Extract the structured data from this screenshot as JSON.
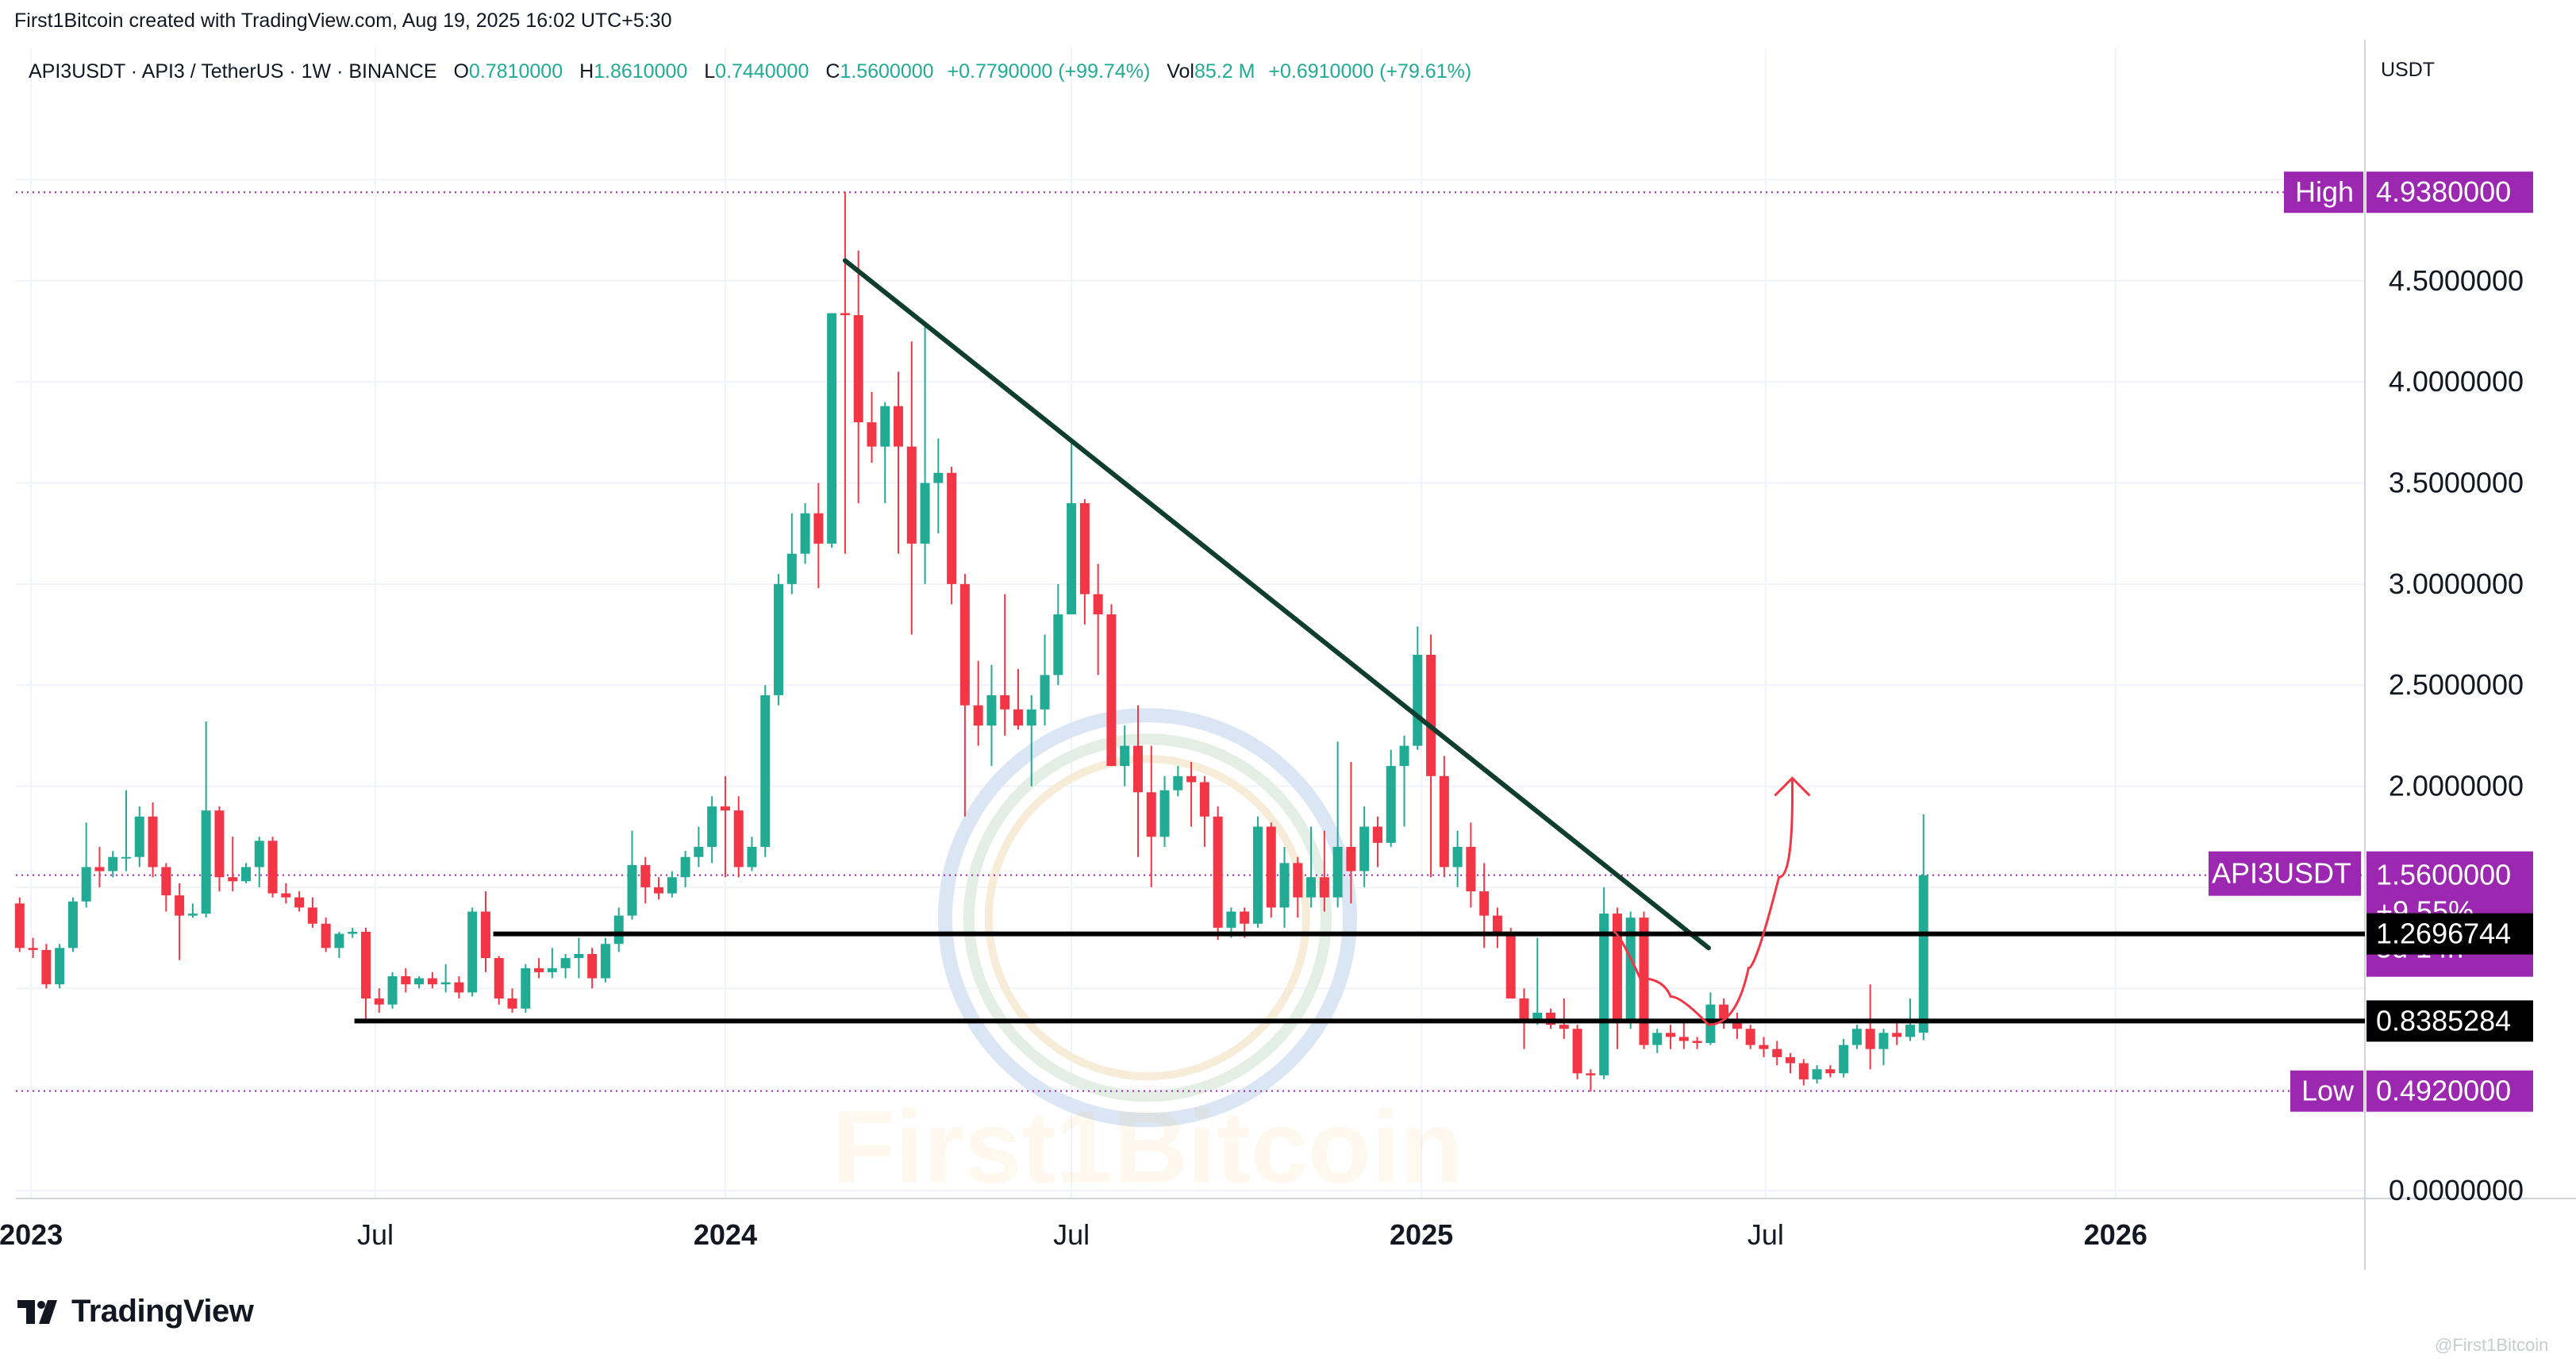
{
  "header": {
    "created_by": "First1Bitcoin created with TradingView.com, Aug 19, 2025 16:02 UTC+5:30",
    "symbol_line": "API3USDT · API3 / TetherUS · 1W · BINANCE",
    "open_label": "O",
    "open": "0.7810000",
    "high_label": "H",
    "high": "1.8610000",
    "low_label": "L",
    "low": "0.7440000",
    "close_label": "C",
    "close": "1.5600000",
    "change": "+0.7790000 (+99.74%)",
    "vol_label": "Vol",
    "vol": "85.2 M",
    "vol_change": "+0.6910000 (+79.61%)"
  },
  "price_axis": {
    "unit": "USDT"
  },
  "colors": {
    "up": "#22ab94",
    "down": "#f23645",
    "trendline": "#0f3d2e",
    "level": "#000000",
    "marker": "#9c27b0",
    "arrow": "#f23645",
    "watermark": "#f5a623"
  },
  "chart_data": {
    "type": "candlestick",
    "timeframe": "1W",
    "y_unit": "USDT",
    "ylim": [
      0,
      5.3
    ],
    "y_ticks": [
      "0.0000000",
      "2.0000000",
      "2.5000000",
      "3.0000000",
      "3.5000000",
      "4.0000000",
      "4.5000000"
    ],
    "x_ticks": [
      {
        "label": "2023",
        "x": "2023-01-01",
        "bold": true
      },
      {
        "label": "Jul",
        "x": "2023-07-01",
        "bold": false
      },
      {
        "label": "2024",
        "x": "2024-01-01",
        "bold": true
      },
      {
        "label": "Jul",
        "x": "2024-07-01",
        "bold": false
      },
      {
        "label": "2025",
        "x": "2025-01-01",
        "bold": true
      },
      {
        "label": "Jul",
        "x": "2025-07-01",
        "bold": false
      },
      {
        "label": "2026",
        "x": "2026-01-01",
        "bold": true
      }
    ],
    "x_range": [
      "2022-12-24",
      "2026-05-10"
    ],
    "candles": [
      [
        "2022-12-26",
        1.42,
        1.45,
        1.18,
        1.2
      ],
      [
        "2023-01-02",
        1.2,
        1.25,
        1.15,
        1.19
      ],
      [
        "2023-01-09",
        1.19,
        1.22,
        1.0,
        1.02
      ],
      [
        "2023-01-16",
        1.02,
        1.22,
        1.0,
        1.2
      ],
      [
        "2023-01-23",
        1.2,
        1.45,
        1.18,
        1.43
      ],
      [
        "2023-01-30",
        1.43,
        1.82,
        1.4,
        1.6
      ],
      [
        "2023-02-06",
        1.6,
        1.7,
        1.5,
        1.58
      ],
      [
        "2023-02-13",
        1.58,
        1.68,
        1.55,
        1.65
      ],
      [
        "2023-02-20",
        1.65,
        1.98,
        1.58,
        1.65
      ],
      [
        "2023-02-27",
        1.65,
        1.9,
        1.6,
        1.85
      ],
      [
        "2023-03-06",
        1.85,
        1.92,
        1.55,
        1.6
      ],
      [
        "2023-03-13",
        1.6,
        1.62,
        1.38,
        1.46
      ],
      [
        "2023-03-20",
        1.46,
        1.52,
        1.14,
        1.36
      ],
      [
        "2023-03-27",
        1.36,
        1.42,
        1.35,
        1.37
      ],
      [
        "2023-04-03",
        1.37,
        2.32,
        1.35,
        1.88
      ],
      [
        "2023-04-10",
        1.88,
        1.9,
        1.48,
        1.55
      ],
      [
        "2023-04-17",
        1.55,
        1.75,
        1.48,
        1.53
      ],
      [
        "2023-04-24",
        1.53,
        1.62,
        1.52,
        1.6
      ],
      [
        "2023-05-01",
        1.6,
        1.75,
        1.5,
        1.73
      ],
      [
        "2023-05-08",
        1.73,
        1.75,
        1.45,
        1.47
      ],
      [
        "2023-05-15",
        1.47,
        1.52,
        1.42,
        1.45
      ],
      [
        "2023-05-22",
        1.45,
        1.48,
        1.38,
        1.4
      ],
      [
        "2023-05-29",
        1.4,
        1.45,
        1.3,
        1.32
      ],
      [
        "2023-06-05",
        1.32,
        1.35,
        1.18,
        1.2
      ],
      [
        "2023-06-12",
        1.2,
        1.28,
        1.15,
        1.27
      ],
      [
        "2023-06-19",
        1.27,
        1.3,
        1.25,
        1.28
      ],
      [
        "2023-06-26",
        1.28,
        1.3,
        0.85,
        0.95
      ],
      [
        "2023-07-03",
        0.95,
        1.0,
        0.88,
        0.92
      ],
      [
        "2023-07-10",
        0.92,
        1.08,
        0.9,
        1.06
      ],
      [
        "2023-07-17",
        1.06,
        1.1,
        0.98,
        1.02
      ],
      [
        "2023-07-24",
        1.02,
        1.06,
        1.0,
        1.05
      ],
      [
        "2023-07-31",
        1.05,
        1.08,
        1.0,
        1.02
      ],
      [
        "2023-08-07",
        1.02,
        1.12,
        0.98,
        1.03
      ],
      [
        "2023-08-14",
        1.03,
        1.06,
        0.95,
        0.98
      ],
      [
        "2023-08-21",
        0.98,
        1.4,
        0.96,
        1.38
      ],
      [
        "2023-08-28",
        1.38,
        1.48,
        1.08,
        1.15
      ],
      [
        "2023-09-04",
        1.15,
        1.16,
        0.92,
        0.95
      ],
      [
        "2023-09-11",
        0.95,
        1.0,
        0.88,
        0.9
      ],
      [
        "2023-09-18",
        0.9,
        1.12,
        0.88,
        1.1
      ],
      [
        "2023-09-25",
        1.1,
        1.15,
        1.05,
        1.08
      ],
      [
        "2023-10-02",
        1.08,
        1.2,
        1.05,
        1.1
      ],
      [
        "2023-10-09",
        1.1,
        1.17,
        1.05,
        1.15
      ],
      [
        "2023-10-16",
        1.15,
        1.25,
        1.05,
        1.17
      ],
      [
        "2023-10-23",
        1.17,
        1.2,
        1.0,
        1.05
      ],
      [
        "2023-10-30",
        1.05,
        1.25,
        1.03,
        1.22
      ],
      [
        "2023-11-06",
        1.22,
        1.4,
        1.18,
        1.36
      ],
      [
        "2023-11-13",
        1.36,
        1.78,
        1.34,
        1.61
      ],
      [
        "2023-11-20",
        1.61,
        1.65,
        1.42,
        1.5
      ],
      [
        "2023-11-27",
        1.5,
        1.55,
        1.44,
        1.47
      ],
      [
        "2023-12-04",
        1.47,
        1.58,
        1.45,
        1.55
      ],
      [
        "2023-12-11",
        1.55,
        1.68,
        1.5,
        1.65
      ],
      [
        "2023-12-18",
        1.65,
        1.8,
        1.6,
        1.7
      ],
      [
        "2023-12-25",
        1.7,
        1.95,
        1.62,
        1.9
      ],
      [
        "2024-01-01",
        1.9,
        2.05,
        1.55,
        1.88
      ],
      [
        "2024-01-08",
        1.88,
        1.95,
        1.55,
        1.6
      ],
      [
        "2024-01-15",
        1.6,
        1.75,
        1.58,
        1.7
      ],
      [
        "2024-01-22",
        1.7,
        2.5,
        1.65,
        2.45
      ],
      [
        "2024-01-29",
        2.45,
        3.05,
        2.4,
        3.0
      ],
      [
        "2024-02-05",
        3.0,
        3.35,
        2.95,
        3.15
      ],
      [
        "2024-02-12",
        3.15,
        3.4,
        3.1,
        3.35
      ],
      [
        "2024-02-19",
        3.35,
        3.5,
        2.98,
        3.2
      ],
      [
        "2024-02-26",
        3.2,
        4.34,
        3.18,
        4.34
      ],
      [
        "2024-03-04",
        4.34,
        4.94,
        3.15,
        4.33
      ],
      [
        "2024-03-11",
        4.33,
        4.65,
        3.4,
        3.8
      ],
      [
        "2024-03-18",
        3.8,
        3.95,
        3.6,
        3.68
      ],
      [
        "2024-03-25",
        3.68,
        3.9,
        3.4,
        3.88
      ],
      [
        "2024-04-01",
        3.88,
        4.05,
        3.15,
        3.68
      ],
      [
        "2024-04-08",
        3.68,
        4.2,
        2.75,
        3.2
      ],
      [
        "2024-04-15",
        3.2,
        4.3,
        3.0,
        3.5
      ],
      [
        "2024-04-22",
        3.5,
        3.72,
        3.25,
        3.55
      ],
      [
        "2024-04-29",
        3.55,
        3.58,
        2.9,
        3.0
      ],
      [
        "2024-05-06",
        3.0,
        3.05,
        1.85,
        2.4
      ],
      [
        "2024-05-13",
        2.4,
        2.62,
        2.2,
        2.3
      ],
      [
        "2024-05-20",
        2.3,
        2.6,
        2.1,
        2.45
      ],
      [
        "2024-05-27",
        2.45,
        2.95,
        2.25,
        2.38
      ],
      [
        "2024-06-03",
        2.38,
        2.58,
        2.28,
        2.3
      ],
      [
        "2024-06-10",
        2.3,
        2.45,
        2.0,
        2.38
      ],
      [
        "2024-06-17",
        2.38,
        2.75,
        2.3,
        2.55
      ],
      [
        "2024-06-24",
        2.55,
        3.0,
        2.5,
        2.85
      ],
      [
        "2024-07-01",
        2.85,
        3.7,
        2.85,
        3.4
      ],
      [
        "2024-07-08",
        3.4,
        3.42,
        2.8,
        2.95
      ],
      [
        "2024-07-15",
        2.95,
        3.1,
        2.55,
        2.85
      ],
      [
        "2024-07-22",
        2.85,
        2.9,
        2.1,
        2.1
      ],
      [
        "2024-07-29",
        2.1,
        2.3,
        2.0,
        2.2
      ],
      [
        "2024-08-05",
        2.2,
        2.4,
        1.65,
        1.97
      ],
      [
        "2024-08-12",
        1.97,
        2.2,
        1.5,
        1.75
      ],
      [
        "2024-08-19",
        1.75,
        2.05,
        1.7,
        1.98
      ],
      [
        "2024-08-26",
        1.98,
        2.1,
        1.95,
        2.05
      ],
      [
        "2024-09-02",
        2.05,
        2.12,
        1.8,
        2.02
      ],
      [
        "2024-09-09",
        2.02,
        2.05,
        1.7,
        1.85
      ],
      [
        "2024-09-16",
        1.85,
        1.9,
        1.24,
        1.3
      ],
      [
        "2024-09-23",
        1.3,
        1.4,
        1.25,
        1.38
      ],
      [
        "2024-09-30",
        1.38,
        1.4,
        1.25,
        1.32
      ],
      [
        "2024-10-07",
        1.32,
        1.85,
        1.3,
        1.8
      ],
      [
        "2024-10-14",
        1.8,
        1.82,
        1.35,
        1.4
      ],
      [
        "2024-10-21",
        1.4,
        1.7,
        1.3,
        1.62
      ],
      [
        "2024-10-28",
        1.62,
        1.65,
        1.35,
        1.45
      ],
      [
        "2024-11-04",
        1.45,
        1.8,
        1.4,
        1.55
      ],
      [
        "2024-11-11",
        1.55,
        1.78,
        1.38,
        1.45
      ],
      [
        "2024-11-18",
        1.45,
        2.22,
        1.4,
        1.7
      ],
      [
        "2024-11-25",
        1.7,
        2.12,
        1.42,
        1.58
      ],
      [
        "2024-12-02",
        1.58,
        1.9,
        1.5,
        1.8
      ],
      [
        "2024-12-09",
        1.8,
        1.85,
        1.6,
        1.72
      ],
      [
        "2024-12-16",
        1.72,
        2.18,
        1.7,
        2.1
      ],
      [
        "2024-12-23",
        2.1,
        2.25,
        1.8,
        2.2
      ],
      [
        "2024-12-30",
        2.2,
        2.79,
        2.18,
        2.65
      ],
      [
        "2025-01-06",
        2.65,
        2.75,
        1.55,
        2.05
      ],
      [
        "2025-01-13",
        2.05,
        2.15,
        1.55,
        1.6
      ],
      [
        "2025-01-20",
        1.6,
        1.78,
        1.5,
        1.7
      ],
      [
        "2025-01-27",
        1.7,
        1.82,
        1.4,
        1.48
      ],
      [
        "2025-02-03",
        1.48,
        1.62,
        1.2,
        1.36
      ],
      [
        "2025-02-10",
        1.36,
        1.4,
        1.2,
        1.27
      ],
      [
        "2025-02-17",
        1.27,
        1.3,
        0.95,
        0.95
      ],
      [
        "2025-02-24",
        0.95,
        1.0,
        0.7,
        0.85
      ],
      [
        "2025-03-03",
        0.85,
        1.25,
        0.82,
        0.88
      ],
      [
        "2025-03-10",
        0.88,
        0.9,
        0.8,
        0.82
      ],
      [
        "2025-03-17",
        0.82,
        0.95,
        0.75,
        0.8
      ],
      [
        "2025-03-24",
        0.8,
        0.82,
        0.55,
        0.58
      ],
      [
        "2025-03-31",
        0.58,
        0.6,
        0.49,
        0.57
      ],
      [
        "2025-04-07",
        0.57,
        1.5,
        0.55,
        1.37
      ],
      [
        "2025-04-14",
        1.37,
        1.4,
        0.7,
        0.85
      ],
      [
        "2025-04-21",
        0.85,
        1.38,
        0.8,
        1.35
      ],
      [
        "2025-04-28",
        1.35,
        1.38,
        0.7,
        0.72
      ],
      [
        "2025-05-05",
        0.72,
        0.8,
        0.68,
        0.78
      ],
      [
        "2025-05-12",
        0.78,
        0.82,
        0.7,
        0.76
      ],
      [
        "2025-05-19",
        0.76,
        0.85,
        0.7,
        0.74
      ],
      [
        "2025-05-26",
        0.74,
        0.76,
        0.7,
        0.73
      ],
      [
        "2025-06-02",
        0.73,
        0.98,
        0.72,
        0.92
      ],
      [
        "2025-06-09",
        0.92,
        0.95,
        0.8,
        0.85
      ],
      [
        "2025-06-16",
        0.85,
        0.88,
        0.75,
        0.8
      ],
      [
        "2025-06-23",
        0.8,
        0.82,
        0.7,
        0.72
      ],
      [
        "2025-06-30",
        0.72,
        0.76,
        0.66,
        0.7
      ],
      [
        "2025-07-07",
        0.7,
        0.74,
        0.62,
        0.66
      ],
      [
        "2025-07-14",
        0.66,
        0.68,
        0.58,
        0.63
      ],
      [
        "2025-07-21",
        0.63,
        0.65,
        0.52,
        0.55
      ],
      [
        "2025-07-28",
        0.55,
        0.62,
        0.53,
        0.6
      ],
      [
        "2025-08-04",
        0.6,
        0.62,
        0.56,
        0.58
      ],
      [
        "2025-08-11",
        0.58,
        0.75,
        0.56,
        0.72
      ],
      [
        "2025-08-18",
        0.72,
        0.82,
        0.7,
        0.8
      ],
      [
        "2025-08-25",
        0.8,
        1.02,
        0.6,
        0.7
      ],
      [
        "2025-09-01",
        0.7,
        0.8,
        0.62,
        0.78
      ],
      [
        "2025-09-08",
        0.78,
        0.85,
        0.72,
        0.76
      ],
      [
        "2025-09-15",
        0.76,
        0.95,
        0.74,
        0.82
      ],
      [
        "2025-09-22",
        0.781,
        1.861,
        0.744,
        1.56
      ]
    ],
    "trendline": {
      "from": [
        "2024-03-04",
        4.6
      ],
      "to": [
        "2025-06-01",
        1.2
      ]
    },
    "horizontal_lines": [
      {
        "from": "2023-09-01",
        "y": 1.2696744
      },
      {
        "from": "2023-06-20",
        "y": 0.8385284
      }
    ],
    "dotted_lines": [
      4.938,
      1.56,
      0.492
    ],
    "arrow_path": [
      [
        "2025-04-12",
        1.28
      ],
      [
        "2025-04-26",
        1.05
      ],
      [
        "2025-05-12",
        0.96
      ],
      [
        "2025-06-01",
        0.82
      ],
      [
        "2025-06-22",
        1.1
      ],
      [
        "2025-07-08",
        1.55
      ],
      [
        "2025-07-15",
        2.04
      ]
    ],
    "labels": {
      "high": {
        "name": "High",
        "value": "4.9380000"
      },
      "low": {
        "name": "Low",
        "value": "0.4920000"
      },
      "current": {
        "name": "API3USDT",
        "value": "1.5600000",
        "change": "+9.55%",
        "countdown": "5d 14h"
      },
      "level_1": "1.2696744",
      "level_2": "0.8385284"
    }
  },
  "branding": {
    "tradingview": "TradingView",
    "watermark": "First1Bitcoin",
    "credit": "@First1Bitcoin"
  }
}
